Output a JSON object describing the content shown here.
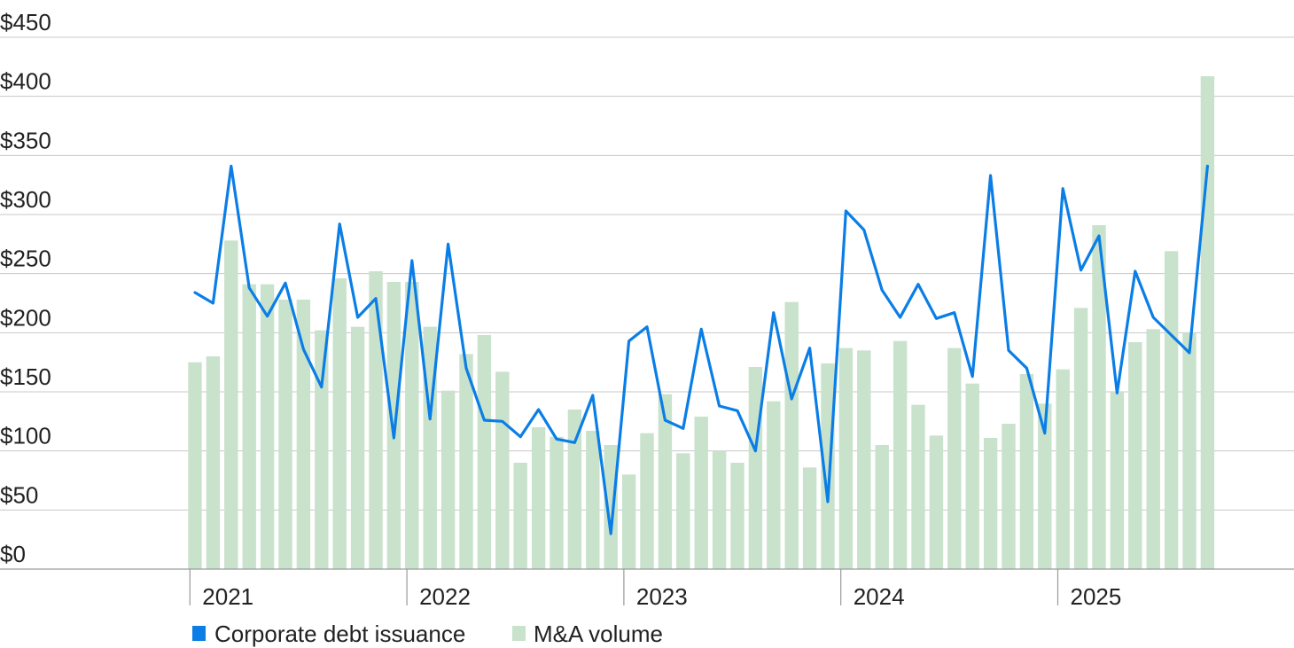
{
  "chart_data": {
    "type": "bar+line",
    "title": "",
    "xlabel": "",
    "ylabel": "",
    "ylim": [
      0,
      450
    ],
    "yticks": [
      0,
      50,
      100,
      150,
      200,
      250,
      300,
      350,
      400,
      450
    ],
    "ytick_labels": [
      "$0",
      "$50",
      "$100",
      "$150",
      "$200",
      "$250",
      "$300",
      "$350",
      "$400",
      "$450"
    ],
    "year_labels": [
      "2021",
      "2022",
      "2023",
      "2024",
      "2025"
    ],
    "months_per_year": 12,
    "grid": true,
    "legend": {
      "position": "bottom-left",
      "entries": [
        {
          "name": "Corporate debt issuance",
          "color": "#0a7ee6",
          "kind": "line"
        },
        {
          "name": "M&A volume",
          "color": "#c9e2cc",
          "kind": "bar"
        }
      ]
    },
    "series": [
      {
        "name": "M&A volume",
        "type": "bar",
        "color": "#c9e2cc",
        "values": [
          175,
          180,
          278,
          241,
          241,
          228,
          228,
          202,
          246,
          205,
          252,
          243,
          243,
          205,
          151,
          182,
          198,
          167,
          90,
          120,
          112,
          135,
          117,
          105,
          80,
          115,
          148,
          98,
          129,
          100,
          90,
          171,
          142,
          226,
          86,
          174,
          187,
          185,
          105,
          193,
          139,
          113,
          187,
          157,
          111,
          123,
          165,
          140,
          169,
          221,
          291,
          150,
          192,
          203,
          269,
          200,
          417
        ]
      },
      {
        "name": "Corporate debt issuance",
        "type": "line",
        "color": "#0a7ee6",
        "values": [
          234,
          225,
          341,
          238,
          214,
          242,
          186,
          154,
          292,
          213,
          229,
          111,
          261,
          127,
          275,
          170,
          126,
          125,
          112,
          135,
          110,
          107,
          147,
          30,
          193,
          205,
          126,
          119,
          203,
          138,
          134,
          100,
          217,
          144,
          187,
          57,
          303,
          287,
          236,
          213,
          241,
          212,
          217,
          163,
          333,
          185,
          170,
          115,
          322,
          253,
          282,
          149,
          252,
          213,
          198,
          183,
          341
        ]
      }
    ]
  }
}
